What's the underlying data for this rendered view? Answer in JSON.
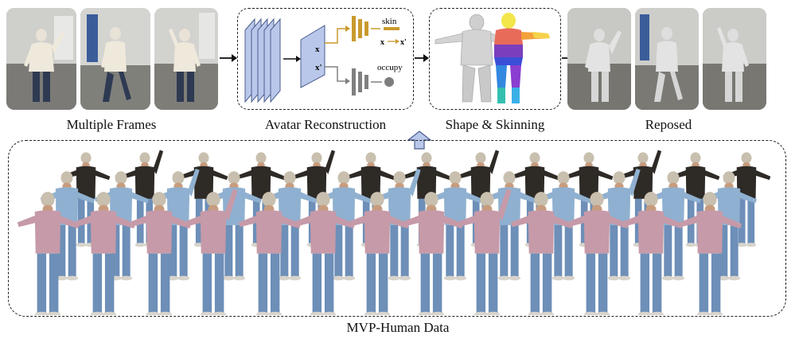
{
  "pipeline": {
    "stages": [
      {
        "label": "Multiple Frames"
      },
      {
        "label": "Avatar Reconstruction"
      },
      {
        "label": "Shape & Skinning"
      },
      {
        "label": "Reposed"
      }
    ],
    "network": {
      "input_point_label": "x",
      "feature_point_label": "x'",
      "skin_label": "skin",
      "skin_mapping_from": "x",
      "skin_mapping_to": "x'",
      "occupy_label": "occupy"
    }
  },
  "dataset": {
    "label": "MVP-Human Data"
  },
  "colors": {
    "photo_bg": "#8f8e88",
    "cnn_block": "#b9c8ea",
    "skin_branch": "#c99a2e",
    "occupy_branch": "#808080",
    "jacket_black": "#2e2a26",
    "jacket_denim": "#8fb0d0",
    "jacket_pink": "#c69aa8",
    "jeans": "#6d8fb8",
    "mesh_gray": "#c8c8c8"
  }
}
